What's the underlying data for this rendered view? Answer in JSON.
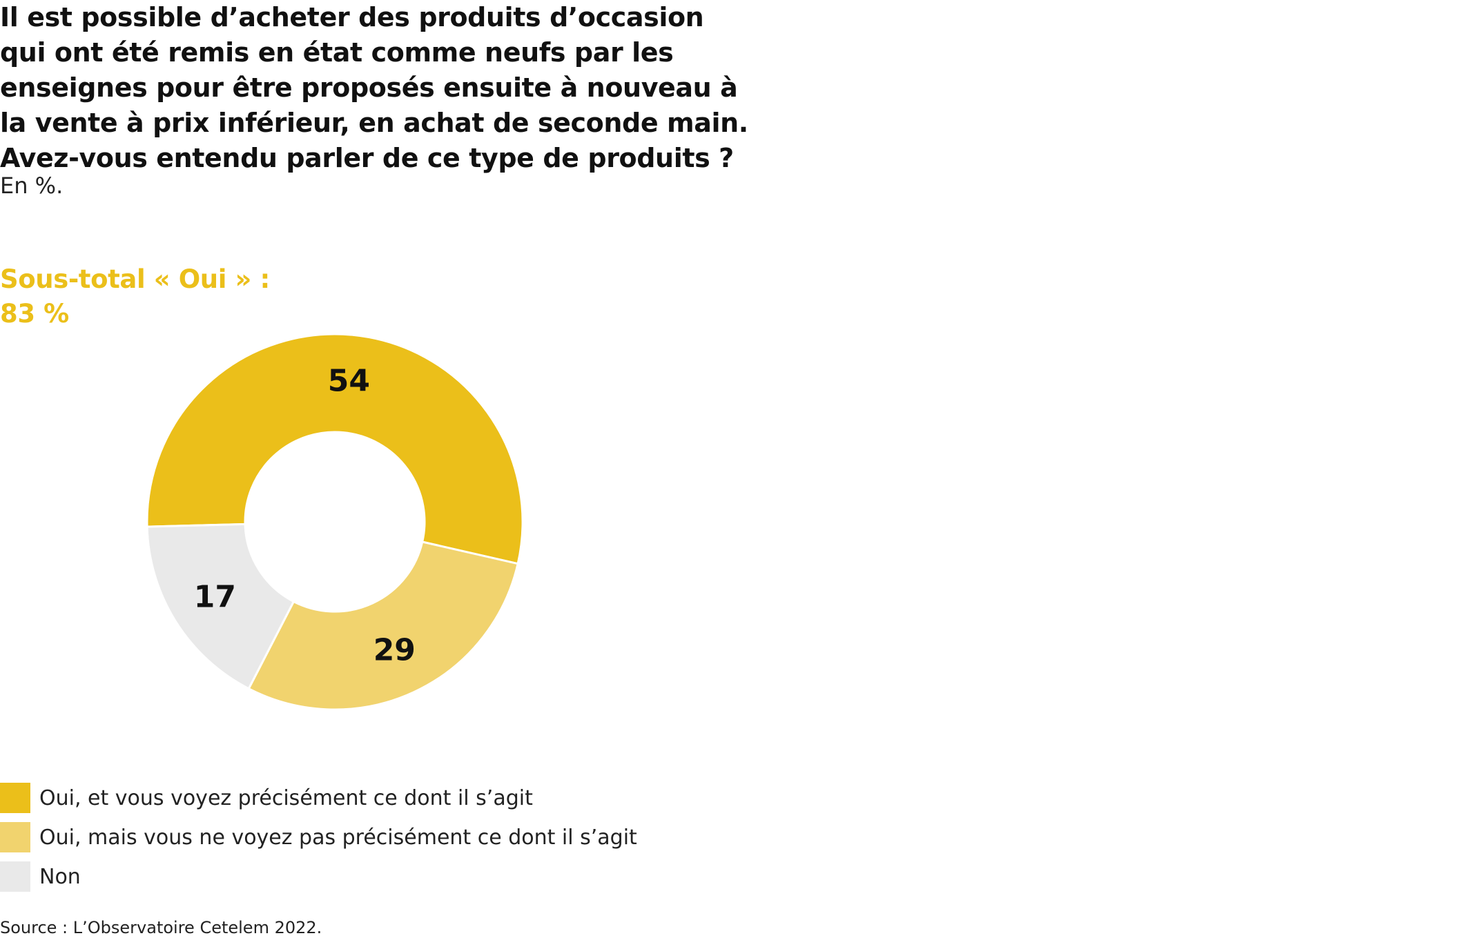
{
  "chart_data": {
    "type": "pie",
    "title_lines": [
      "Il est possible d’acheter des produits d’occasion",
      "qui ont été remis en état comme neufs par les",
      "enseignes pour être proposés ensuite à nouveau à",
      "la vente à prix inférieur, en achat de seconde main.",
      "Avez-vous entendu parler de ce type de produits ?"
    ],
    "subtitle": "En %.",
    "subtotal_lines": [
      "Sous-total « Oui » :",
      "83 %"
    ],
    "categories": [
      "Oui, et vous voyez précisément ce dont il s’agit",
      "Oui, mais vous ne voyez pas précisément ce dont il s’agit",
      "Non"
    ],
    "values": [
      54,
      29,
      17
    ],
    "value_labels": [
      "54",
      "29",
      "17"
    ],
    "colors": [
      "#ebbf1a",
      "#f1d36e",
      "#e9e9e9"
    ],
    "legend_position": "bottom-left",
    "source": "Source : L’Observatoire Cetelem 2022."
  }
}
